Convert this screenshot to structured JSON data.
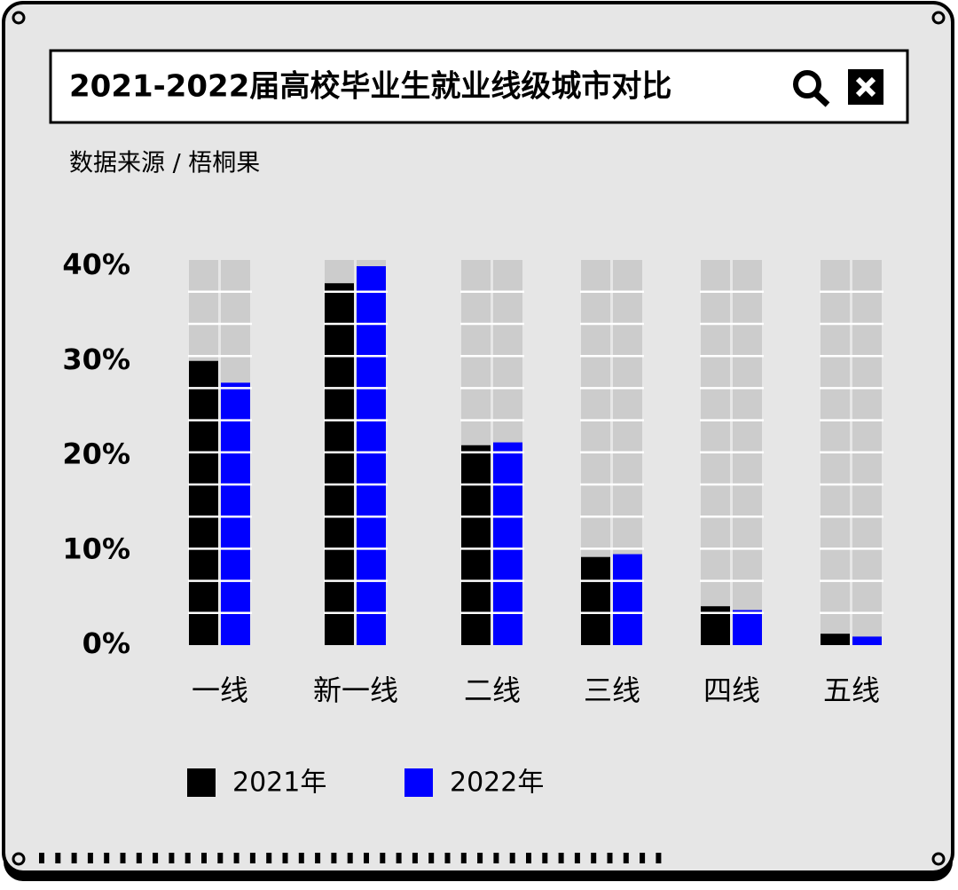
{
  "chart_data": {
    "type": "bar",
    "title": "2021-2022届高校毕业生就业线级城市对比",
    "source": "数据来源 / 梧桐果",
    "categories": [
      "一线",
      "新一线",
      "二线",
      "三线",
      "四线",
      "五线"
    ],
    "series": [
      {
        "name": "2021年",
        "color": "#000000",
        "values": [
          30,
          38.2,
          21.1,
          9.3,
          4.1,
          1.2
        ]
      },
      {
        "name": "2022年",
        "color": "#0000ff",
        "values": [
          27.7,
          40,
          21.4,
          9.6,
          3.7,
          0.9
        ]
      }
    ],
    "ylim": [
      0,
      40
    ],
    "yticks": [
      {
        "value": 0,
        "label": "0%"
      },
      {
        "value": 10,
        "label": "10%"
      },
      {
        "value": 20,
        "label": "20%"
      },
      {
        "value": 30,
        "label": "30%"
      },
      {
        "value": 40,
        "label": "40%"
      }
    ]
  }
}
